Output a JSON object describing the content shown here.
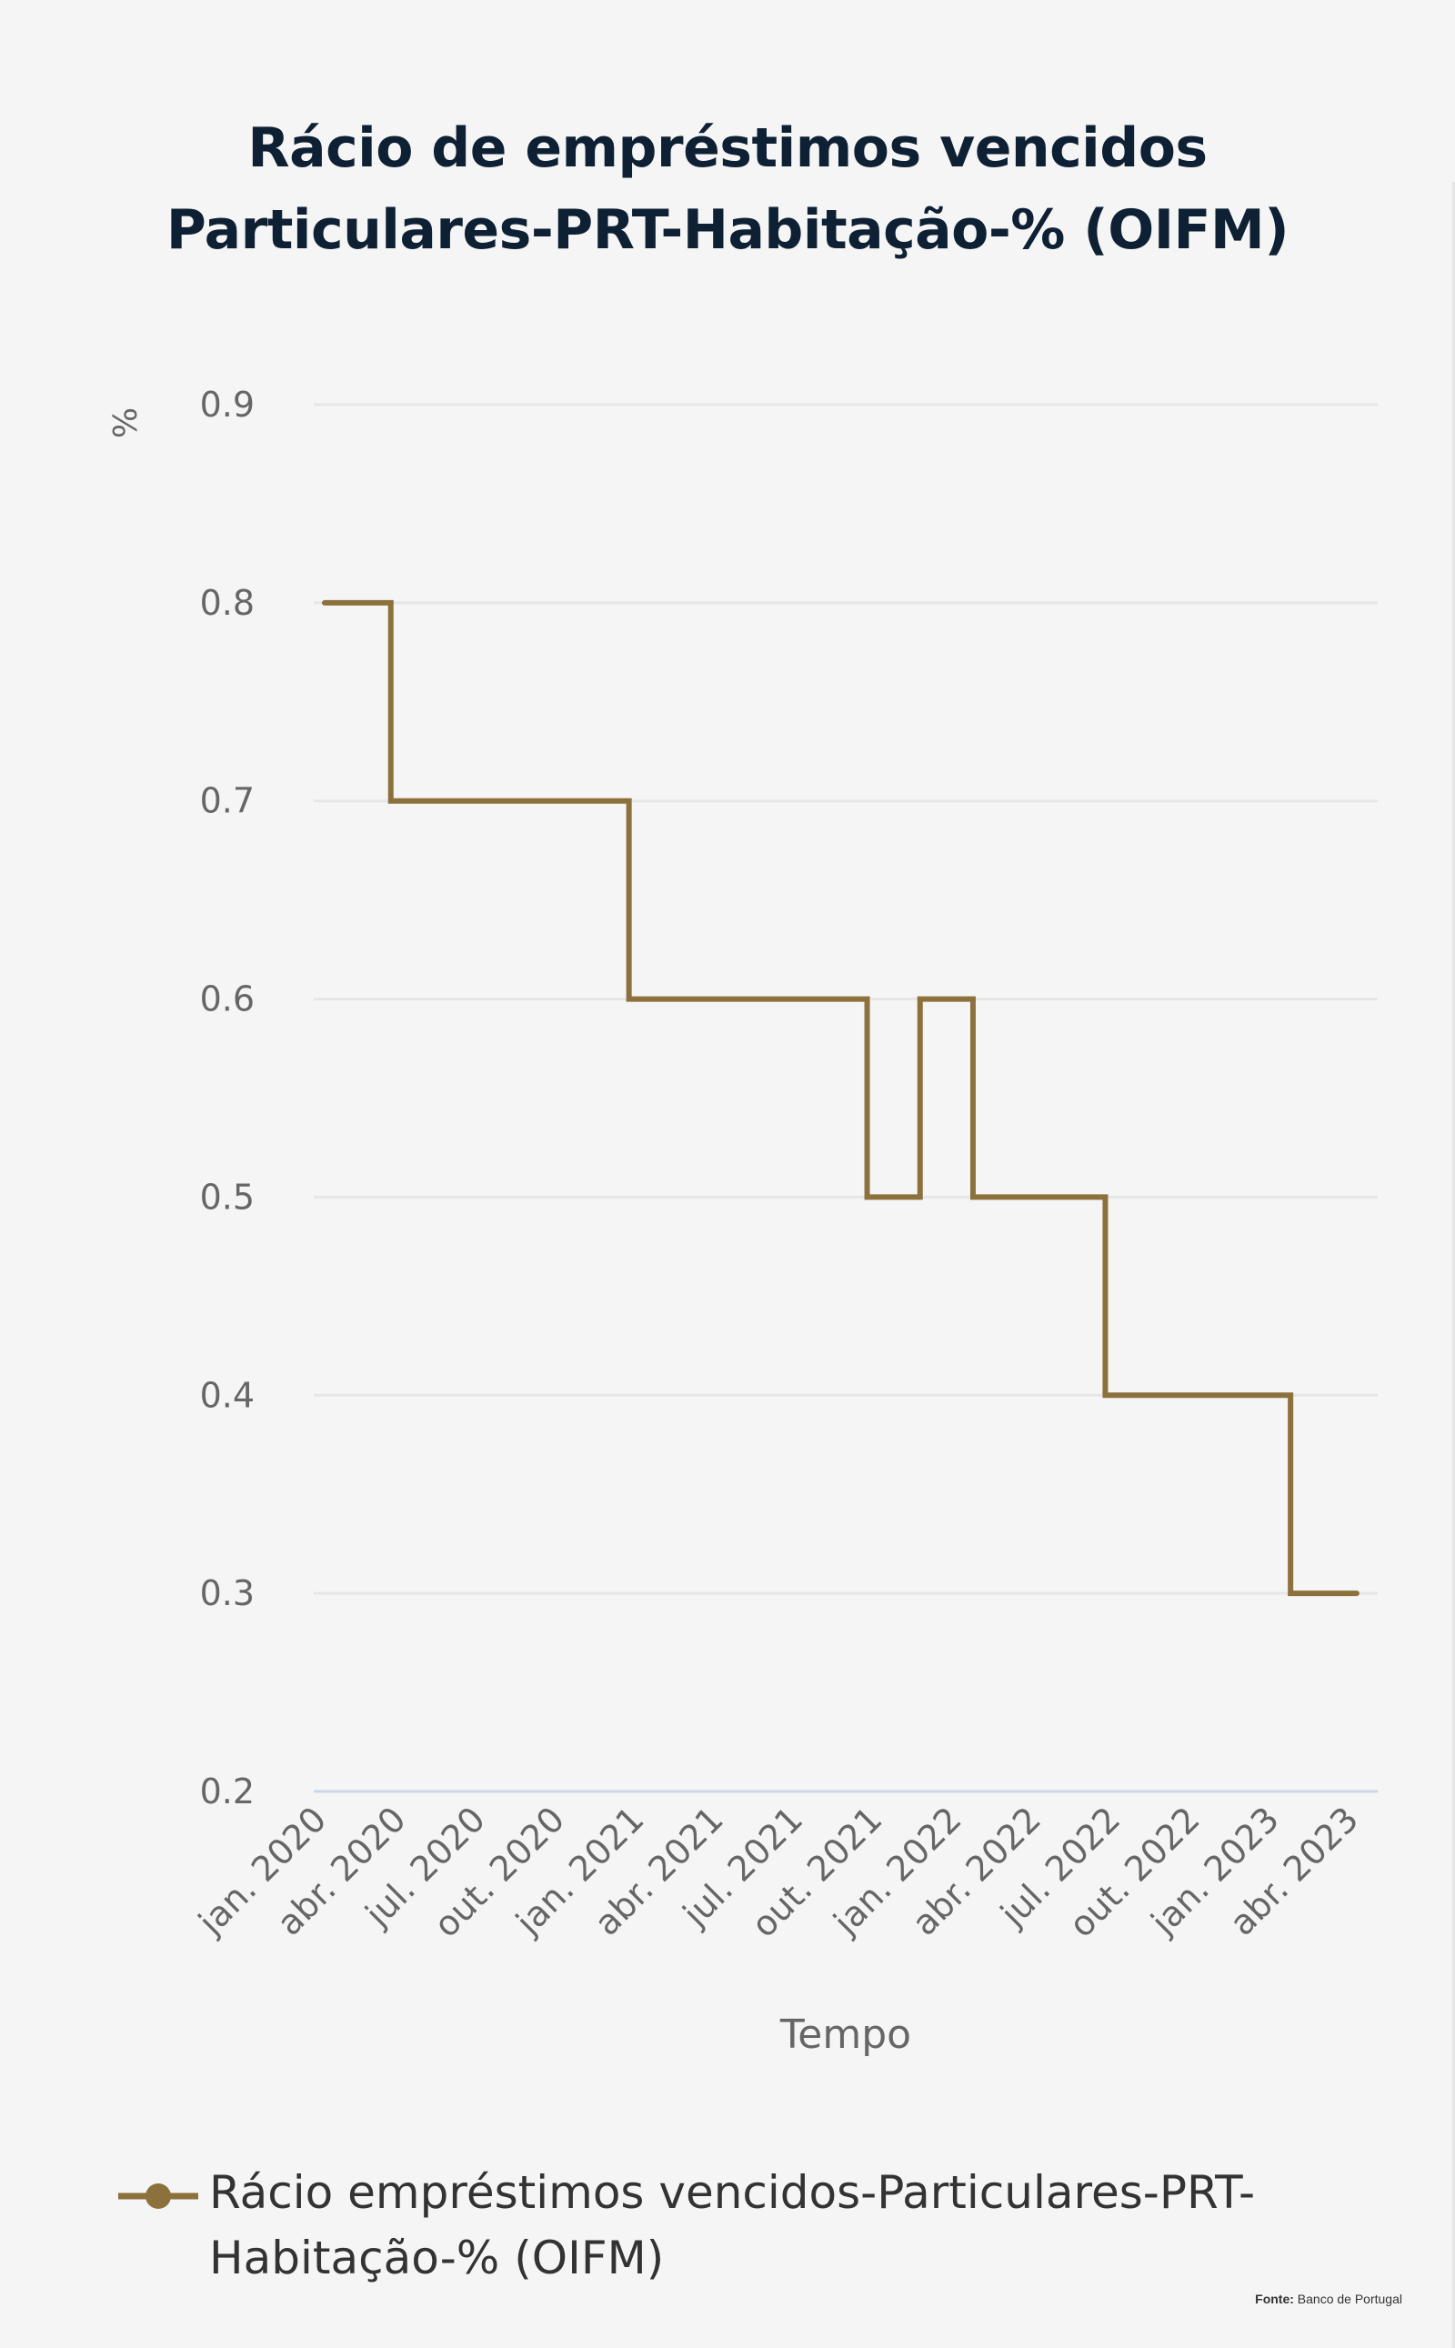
{
  "chart_data": {
    "type": "line",
    "step": true,
    "title_lines": [
      "Rácio de empréstimos vencidos",
      "Particulares-PRT-Habitação-% (OIFM)"
    ],
    "xlabel": "Tempo",
    "ylabel": "%",
    "ylim": [
      0.2,
      0.9
    ],
    "yticks": [
      "0.2",
      "0.3",
      "0.4",
      "0.5",
      "0.6",
      "0.7",
      "0.8",
      "0.9"
    ],
    "grid": true,
    "legend_position": "bottom",
    "x_tick_labels": [
      "jan. 2020",
      "abr. 2020",
      "jul. 2020",
      "out. 2020",
      "jan. 2021",
      "abr. 2021",
      "jul. 2021",
      "out. 2021",
      "jan. 2022",
      "abr. 2022",
      "jul. 2022",
      "out. 2022",
      "jan. 2023",
      "abr. 2023"
    ],
    "x": [
      "2020-01",
      "2020-02",
      "2020-03",
      "2020-04",
      "2020-05",
      "2020-06",
      "2020-07",
      "2020-08",
      "2020-09",
      "2020-10",
      "2020-11",
      "2020-12",
      "2021-01",
      "2021-02",
      "2021-03",
      "2021-04",
      "2021-05",
      "2021-06",
      "2021-07",
      "2021-08",
      "2021-09",
      "2021-10",
      "2021-11",
      "2021-12",
      "2022-01",
      "2022-02",
      "2022-03",
      "2022-04",
      "2022-05",
      "2022-06",
      "2022-07",
      "2022-08",
      "2022-09",
      "2022-10",
      "2022-11",
      "2022-12",
      "2023-01",
      "2023-02",
      "2023-03",
      "2023-04"
    ],
    "series": [
      {
        "name": "Rácio empréstimos vencidos-Particulares-PRT-Habitação-% (OIFM)",
        "color": "#8c713c",
        "values": [
          0.8,
          0.8,
          0.8,
          0.7,
          0.7,
          0.7,
          0.7,
          0.7,
          0.7,
          0.7,
          0.7,
          0.7,
          0.6,
          0.6,
          0.6,
          0.6,
          0.6,
          0.6,
          0.6,
          0.6,
          0.6,
          0.5,
          0.5,
          0.6,
          0.6,
          0.5,
          0.5,
          0.5,
          0.5,
          0.5,
          0.4,
          0.4,
          0.4,
          0.4,
          0.4,
          0.4,
          0.4,
          0.3,
          0.3,
          0.3
        ]
      }
    ]
  },
  "legend": {
    "label": "Rácio empréstimos vencidos-Particulares-PRT-Habitação-% (OIFM)"
  },
  "source": {
    "label": "Fonte:",
    "text": "Banco de Portugal"
  }
}
